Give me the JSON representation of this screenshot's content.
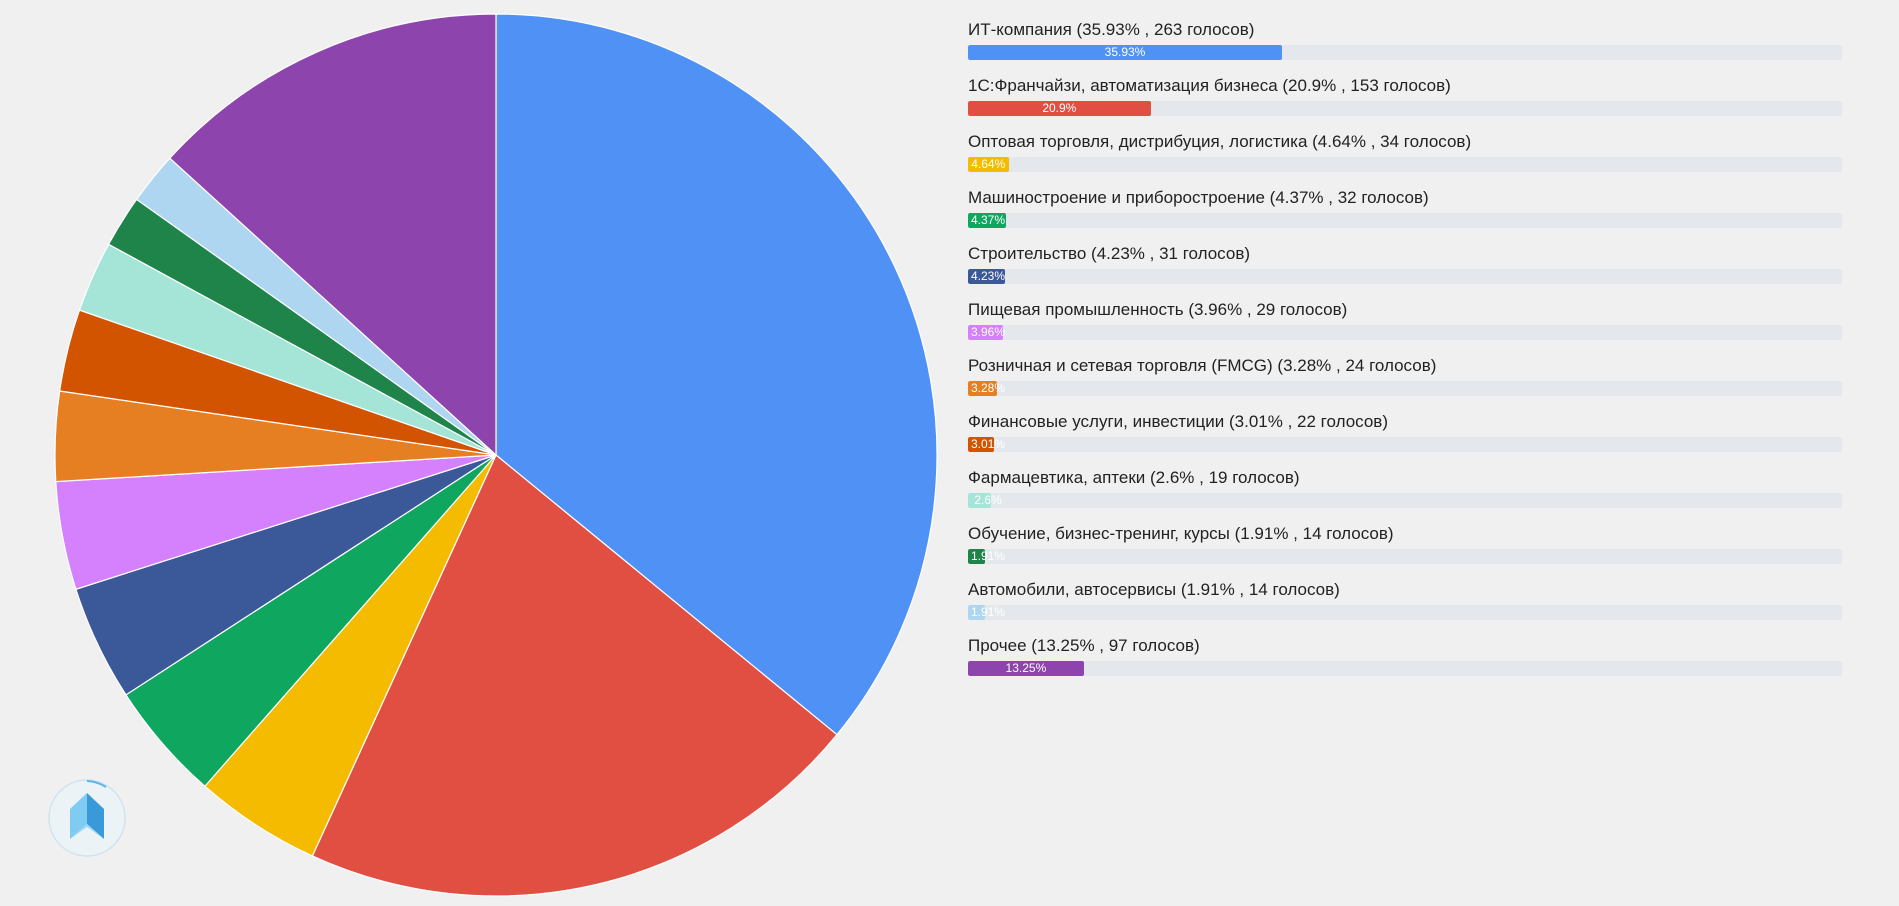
{
  "chart_data": {
    "type": "pie",
    "categories": [
      "ИТ-компания",
      "1С:Франчайзи, автоматизация бизнеса",
      "Оптовая торговля, дистрибуция, логистика",
      "Машиностроение и приборостроение",
      "Строительство",
      "Пищевая промышленность",
      "Розничная и сетевая торговля (FMCG)",
      "Финансовые услуги, инвестиции",
      "Фармацевтика, аптеки",
      "Обучение, бизнес-тренинг, курсы",
      "Автомобили, автосервисы",
      "Прочее"
    ],
    "values": [
      35.93,
      20.9,
      4.64,
      4.37,
      4.23,
      3.96,
      3.28,
      3.01,
      2.6,
      1.91,
      1.91,
      13.25
    ],
    "votes": [
      263,
      153,
      34,
      32,
      31,
      29,
      24,
      22,
      19,
      14,
      14,
      97
    ],
    "colors": [
      "#4f91f5",
      "#e04f41",
      "#f5bb00",
      "#0fa75f",
      "#3b5998",
      "#d580fc",
      "#e67e22",
      "#d35400",
      "#a5e5d8",
      "#1e8449",
      "#aed6f1",
      "#8e44ad"
    ],
    "rows": [
      {
        "label": "ИТ-компания (35.93% , 263 голосов)",
        "percent_text": "35.93%"
      },
      {
        "label": "1С:Франчайзи, автоматизация бизнеса (20.9% , 153 голосов)",
        "percent_text": "20.9%"
      },
      {
        "label": "Оптовая торговля, дистрибуция, логистика (4.64% , 34 голосов)",
        "percent_text": "4.64%"
      },
      {
        "label": "Машиностроение и приборостроение (4.37% , 32 голосов)",
        "percent_text": "4.37%"
      },
      {
        "label": "Строительство (4.23% , 31 голосов)",
        "percent_text": "4.23%"
      },
      {
        "label": "Пищевая промышленность (3.96% , 29 голосов)",
        "percent_text": "3.96%"
      },
      {
        "label": "Розничная и сетевая торговля (FMCG) (3.28% , 24 голосов)",
        "percent_text": "3.28%"
      },
      {
        "label": "Финансовые услуги, инвестиции (3.01% , 22 голосов)",
        "percent_text": "3.01%"
      },
      {
        "label": "Фармацевтика, аптеки (2.6% , 19 голосов)",
        "percent_text": "2.6%"
      },
      {
        "label": "Обучение, бизнес-тренинг, курсы (1.91% , 14 голосов)",
        "percent_text": "1.91%"
      },
      {
        "label": "Автомобили, автосервисы (1.91% , 14 голосов)",
        "percent_text": "1.91%"
      },
      {
        "label": "Прочее (13.25% , 97 голосов)",
        "percent_text": "13.25%"
      }
    ],
    "title": "",
    "legend": "right"
  },
  "logo": {
    "icon": "app-logo-icon",
    "color": "#5ab4e6"
  }
}
